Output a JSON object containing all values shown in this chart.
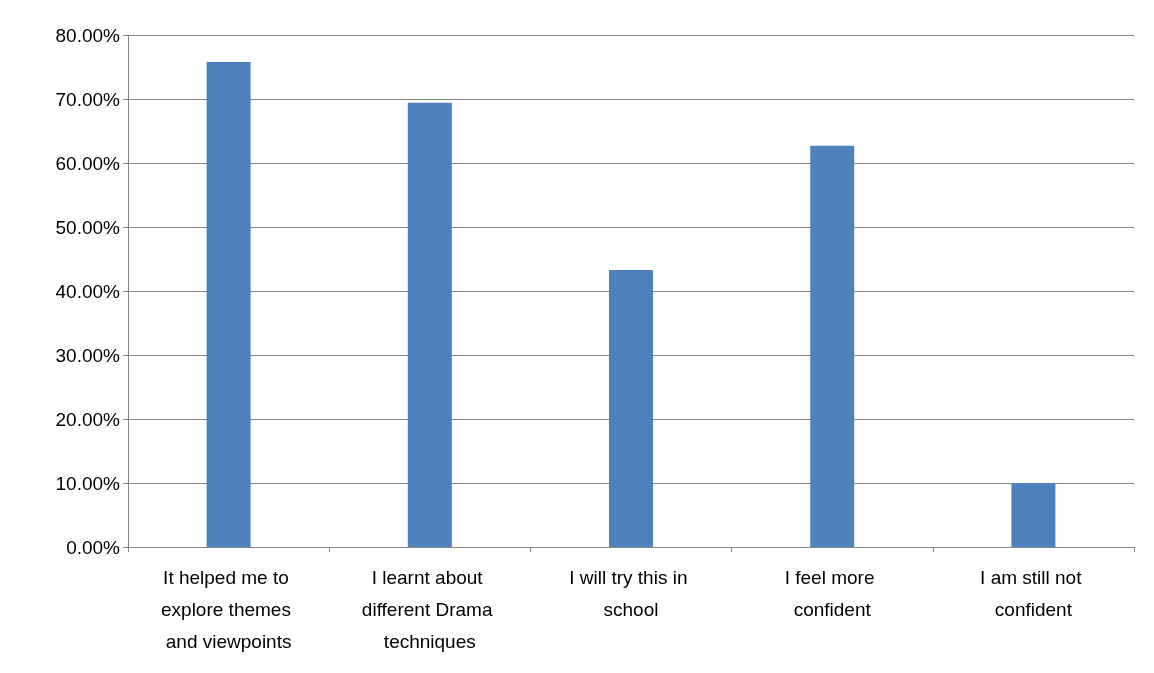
{
  "chart_data": {
    "type": "bar",
    "categories": [
      "It helped me to explore themes and viewpoints",
      "I learnt about different Drama techniques",
      "I will try this in school",
      "I feel more confident",
      "I am still not confident"
    ],
    "values": [
      75.8,
      69.4,
      43.3,
      62.7,
      10.0
    ],
    "color": "#4f81bd",
    "ylim": [
      0,
      80
    ],
    "yticks": [
      {
        "value": 0,
        "label": "0.00%"
      },
      {
        "value": 10,
        "label": "10.00%"
      },
      {
        "value": 20,
        "label": "20.00%"
      },
      {
        "value": 30,
        "label": "30.00%"
      },
      {
        "value": 40,
        "label": "40.00%"
      },
      {
        "value": 50,
        "label": "50.00%"
      },
      {
        "value": 60,
        "label": "60.00%"
      },
      {
        "value": 70,
        "label": "70.00%"
      },
      {
        "value": 80,
        "label": "80.00%"
      }
    ],
    "grid": "y"
  }
}
